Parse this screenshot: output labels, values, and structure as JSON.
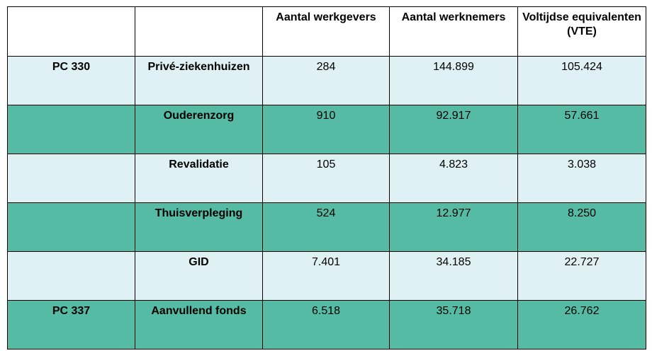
{
  "table": {
    "headers": [
      "",
      "",
      "Aantal werkgevers",
      "Aantal werknemers",
      "Voltijdse equivalenten (VTE)"
    ],
    "rows": [
      {
        "pc": "PC 330",
        "sector": "Privé-ziekenhuizen",
        "werkgevers": "284",
        "werknemers": "144.899",
        "vte": "105.424"
      },
      {
        "pc": "",
        "sector": "Ouderenzorg",
        "werkgevers": "910",
        "werknemers": "92.917",
        "vte": "57.661"
      },
      {
        "pc": "",
        "sector": "Revalidatie",
        "werkgevers": "105",
        "werknemers": "4.823",
        "vte": "3.038"
      },
      {
        "pc": "",
        "sector": "Thuisverpleging",
        "werkgevers": "524",
        "werknemers": "12.977",
        "vte": "8.250"
      },
      {
        "pc": "",
        "sector": "GID",
        "werkgevers": "7.401",
        "werknemers": "34.185",
        "vte": "22.727"
      },
      {
        "pc": "PC 337",
        "sector": "Aanvullend fonds",
        "werkgevers": "6.518",
        "werknemers": "35.718",
        "vte": "26.762"
      }
    ]
  },
  "colors": {
    "light_row": "#dff1f5",
    "dark_row": "#56bba4",
    "border": "#000000"
  }
}
